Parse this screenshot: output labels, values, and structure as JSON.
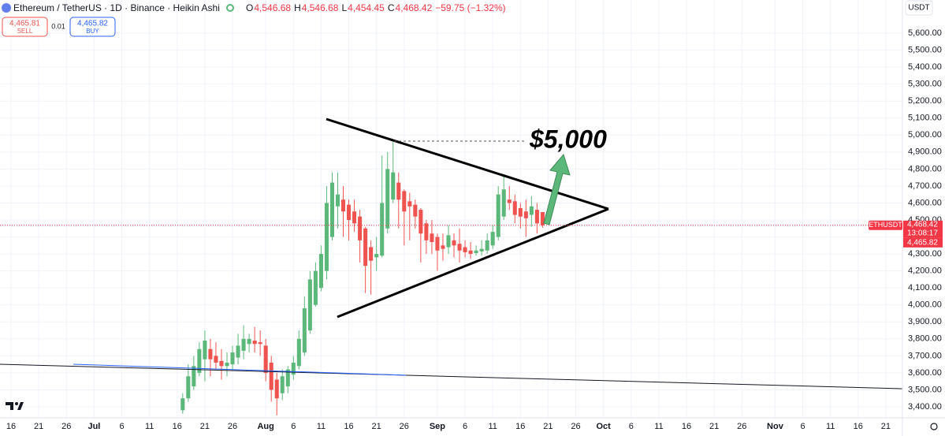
{
  "header": {
    "symbol": "Ethereum / TetherUS · 1D · Binance · Heikin Ashi",
    "ohlc": [
      {
        "label": "O",
        "value": "4,546.68"
      },
      {
        "label": "H",
        "value": "4,546.68"
      },
      {
        "label": "L",
        "value": "4,454.45"
      },
      {
        "label": "C",
        "value": "4,468.42"
      }
    ],
    "change": "−59.75 (−1.32%)"
  },
  "trade": {
    "sell_price": "4,465.81",
    "sell": "SELL",
    "spread": "0.01",
    "buy_price": "4,465.82",
    "buy": "BUY"
  },
  "price_axis": {
    "currency": "USDT"
  },
  "price_tag": {
    "symbol": "ETHUSDT",
    "price": "4,468.42",
    "countdown": "13:08:17",
    "buy_price": "4,465.82"
  },
  "annotation": "$5,000",
  "chart_data": {
    "type": "candlestick",
    "up_color": "#5cb87a",
    "down_color": "#ef5350",
    "grid": true,
    "x": [
      "07-17",
      "07-18",
      "07-19",
      "07-20",
      "07-21",
      "07-22",
      "07-23",
      "07-24",
      "07-25",
      "07-26",
      "07-27",
      "07-28",
      "07-29",
      "07-30",
      "07-31",
      "08-01",
      "08-02",
      "08-03",
      "08-04",
      "08-05",
      "08-06",
      "08-07",
      "08-08",
      "08-09",
      "08-10",
      "08-11",
      "08-12",
      "08-13",
      "08-14",
      "08-15",
      "08-16",
      "08-17",
      "08-18",
      "08-19",
      "08-20",
      "08-21",
      "08-22",
      "08-23",
      "08-24",
      "08-25",
      "08-26",
      "08-27",
      "08-28",
      "08-29",
      "08-30",
      "08-31",
      "09-01",
      "09-02",
      "09-03",
      "09-04",
      "09-05",
      "09-06",
      "09-07",
      "09-08",
      "09-09",
      "09-10",
      "09-11",
      "09-12",
      "09-13",
      "09-14",
      "09-15",
      "09-16",
      "09-17",
      "09-18",
      "09-19",
      "09-20"
    ],
    "open": [
      3380,
      3450,
      3520,
      3600,
      3680,
      3740,
      3700,
      3670,
      3640,
      3650,
      3690,
      3730,
      3770,
      3790,
      3780,
      3760,
      3660,
      3560,
      3480,
      3520,
      3590,
      3640,
      3720,
      3850,
      4000,
      4100,
      4200,
      4400,
      4580,
      4620,
      4590,
      4550,
      4520,
      4450,
      4340,
      4280,
      4290,
      4450,
      4620,
      4720,
      4670,
      4610,
      4590,
      4560,
      4480,
      4420,
      4400,
      4350,
      4340,
      4380,
      4360,
      4340,
      4320,
      4305,
      4315,
      4320,
      4350,
      4400,
      4520,
      4620,
      4610,
      4570,
      4550,
      4530,
      4560,
      4546.68
    ],
    "high": [
      3480,
      3650,
      3700,
      3780,
      3850,
      3800,
      3780,
      3740,
      3720,
      3760,
      3830,
      3880,
      3830,
      3870,
      3850,
      3800,
      3700,
      3600,
      3620,
      3640,
      3700,
      3850,
      4050,
      4200,
      4250,
      4350,
      4700,
      4780,
      4780,
      4700,
      4620,
      4620,
      4560,
      4460,
      4380,
      4400,
      4880,
      4900,
      4960,
      4780,
      4680,
      4660,
      4620,
      4570,
      4500,
      4500,
      4420,
      4420,
      4470,
      4420,
      4450,
      4380,
      4370,
      4350,
      4380,
      4420,
      4470,
      4700,
      4760,
      4700,
      4650,
      4600,
      4620,
      4640,
      4600,
      4546.68
    ],
    "low": [
      3360,
      3430,
      3500,
      3580,
      3550,
      3580,
      3620,
      3560,
      3580,
      3620,
      3650,
      3680,
      3720,
      3720,
      3700,
      3550,
      3430,
      3350,
      3440,
      3480,
      3560,
      3620,
      3700,
      3830,
      3990,
      4080,
      4150,
      4380,
      4450,
      4400,
      4380,
      4430,
      4250,
      4070,
      4060,
      4200,
      4280,
      4420,
      4600,
      4450,
      4350,
      4380,
      4450,
      4250,
      4300,
      4300,
      4200,
      4260,
      4300,
      4280,
      4250,
      4280,
      4270,
      4290,
      4290,
      4300,
      4330,
      4380,
      4500,
      4560,
      4480,
      4450,
      4400,
      4460,
      4420,
      4454.45
    ],
    "close": [
      3450,
      3580,
      3640,
      3740,
      3790,
      3680,
      3660,
      3640,
      3660,
      3720,
      3760,
      3800,
      3800,
      3770,
      3770,
      3600,
      3500,
      3450,
      3580,
      3620,
      3660,
      3800,
      3980,
      4150,
      4200,
      4300,
      4600,
      4720,
      4650,
      4550,
      4500,
      4480,
      4380,
      4230,
      4260,
      4300,
      4600,
      4800,
      4780,
      4620,
      4550,
      4580,
      4520,
      4420,
      4380,
      4370,
      4320,
      4330,
      4410,
      4350,
      4320,
      4310,
      4300,
      4320,
      4330,
      4380,
      4430,
      4650,
      4680,
      4600,
      4530,
      4520,
      4510,
      4580,
      4480,
      4468.42
    ],
    "xlim": [
      "06-14",
      "11-24"
    ],
    "xticks": [
      {
        "value": "06-16",
        "label": "16"
      },
      {
        "value": "06-21",
        "label": "21"
      },
      {
        "value": "06-26",
        "label": "26"
      },
      {
        "value": "07-01",
        "label": "Jul"
      },
      {
        "value": "07-06",
        "label": "6"
      },
      {
        "value": "07-11",
        "label": "11"
      },
      {
        "value": "07-16",
        "label": "16"
      },
      {
        "value": "07-21",
        "label": "21"
      },
      {
        "value": "07-26",
        "label": "26"
      },
      {
        "value": "08-01",
        "label": "Aug"
      },
      {
        "value": "08-06",
        "label": "6"
      },
      {
        "value": "08-11",
        "label": "11"
      },
      {
        "value": "08-16",
        "label": "16"
      },
      {
        "value": "08-21",
        "label": "21"
      },
      {
        "value": "08-26",
        "label": "26"
      },
      {
        "value": "09-01",
        "label": "Sep"
      },
      {
        "value": "09-06",
        "label": "6"
      },
      {
        "value": "09-11",
        "label": "11"
      },
      {
        "value": "09-16",
        "label": "16"
      },
      {
        "value": "09-21",
        "label": "21"
      },
      {
        "value": "09-26",
        "label": "26"
      },
      {
        "value": "10-01",
        "label": "Oct"
      },
      {
        "value": "10-06",
        "label": "6"
      },
      {
        "value": "10-11",
        "label": "11"
      },
      {
        "value": "10-16",
        "label": "16"
      },
      {
        "value": "10-21",
        "label": "21"
      },
      {
        "value": "10-26",
        "label": "26"
      },
      {
        "value": "11-01",
        "label": "Nov"
      },
      {
        "value": "11-06",
        "label": "6"
      },
      {
        "value": "11-11",
        "label": "11"
      },
      {
        "value": "11-16",
        "label": "16"
      },
      {
        "value": "11-21",
        "label": "21"
      }
    ],
    "ylim": [
      3335,
      5795
    ],
    "yticks": [
      {
        "value": 3400,
        "label": "3,400.00"
      },
      {
        "value": 3500,
        "label": "3,500.00"
      },
      {
        "value": 3600,
        "label": "3,600.00"
      },
      {
        "value": 3700,
        "label": "3,700.00"
      },
      {
        "value": 3800,
        "label": "3,800.00"
      },
      {
        "value": 3900,
        "label": "3,900.00"
      },
      {
        "value": 4000,
        "label": "4,000.00"
      },
      {
        "value": 4100,
        "label": "4,100.00"
      },
      {
        "value": 4200,
        "label": "4,200.00"
      },
      {
        "value": 4300,
        "label": "4,300.00"
      },
      {
        "value": 4400,
        "label": "4,400.00"
      },
      {
        "value": 4500,
        "label": "4,500.00"
      },
      {
        "value": 4600,
        "label": "4,600.00"
      },
      {
        "value": 4700,
        "label": "4,700.00"
      },
      {
        "value": 4800,
        "label": "4,800.00"
      },
      {
        "value": 4900,
        "label": "4,900.00"
      },
      {
        "value": 5000,
        "label": "5,000.00"
      },
      {
        "value": 5100,
        "label": "5,100.00"
      },
      {
        "value": 5200,
        "label": "5,200.00"
      },
      {
        "value": 5300,
        "label": "5,300.00"
      },
      {
        "value": 5400,
        "label": "5,400.00"
      },
      {
        "value": 5500,
        "label": "5,500.00"
      },
      {
        "value": 5600,
        "label": "5,600.00"
      }
    ]
  }
}
